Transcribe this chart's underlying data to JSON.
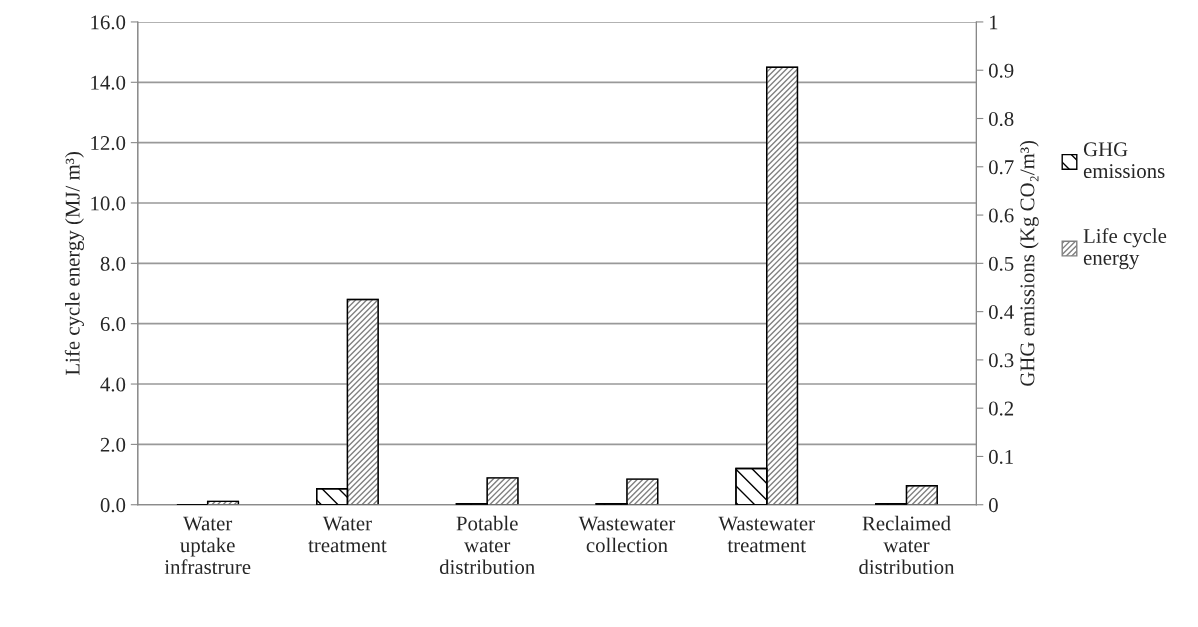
{
  "chart_data": {
    "type": "bar",
    "categories": [
      "Water\nuptake\ninfrastrure",
      "Water\ntreatment",
      "Potable\nwater\ndistribution",
      "Wastewater\ncollection",
      "Wastewater\ntreatment",
      "Reclaimed\nwater\ndistribution"
    ],
    "series": [
      {
        "name": "GHG emissions",
        "color": "#000000",
        "axis": "y2",
        "values": [
          null,
          0.033,
          0.002,
          0.002,
          0.075,
          0.002
        ]
      },
      {
        "name": "Life cycle energy",
        "color": "#808080",
        "values": [
          0.11,
          6.8,
          0.89,
          0.85,
          14.5,
          0.63
        ]
      }
    ],
    "ylabel": "Life cycle energy (MJ/ m³)",
    "y2label": "GHG emissions (Kg CO₂/m³)",
    "ylim": [
      0,
      16
    ],
    "yticks": [
      {
        "value": 0,
        "label": "0.0"
      },
      {
        "value": 2,
        "label": "2.0"
      },
      {
        "value": 4,
        "label": "4.0"
      },
      {
        "value": 6,
        "label": "6.0"
      },
      {
        "value": 8,
        "label": "8.0"
      },
      {
        "value": 10,
        "label": "10.0"
      },
      {
        "value": 12,
        "label": "12.0"
      },
      {
        "value": 14,
        "label": "14.0"
      },
      {
        "value": 16,
        "label": "16.0"
      }
    ],
    "y2lim": [
      0,
      1
    ],
    "y2ticks": [
      0,
      0.1,
      0.2,
      0.3,
      0.4,
      0.5,
      0.6,
      0.7,
      0.8,
      0.9,
      1
    ],
    "grid": "y",
    "legend": "right"
  }
}
